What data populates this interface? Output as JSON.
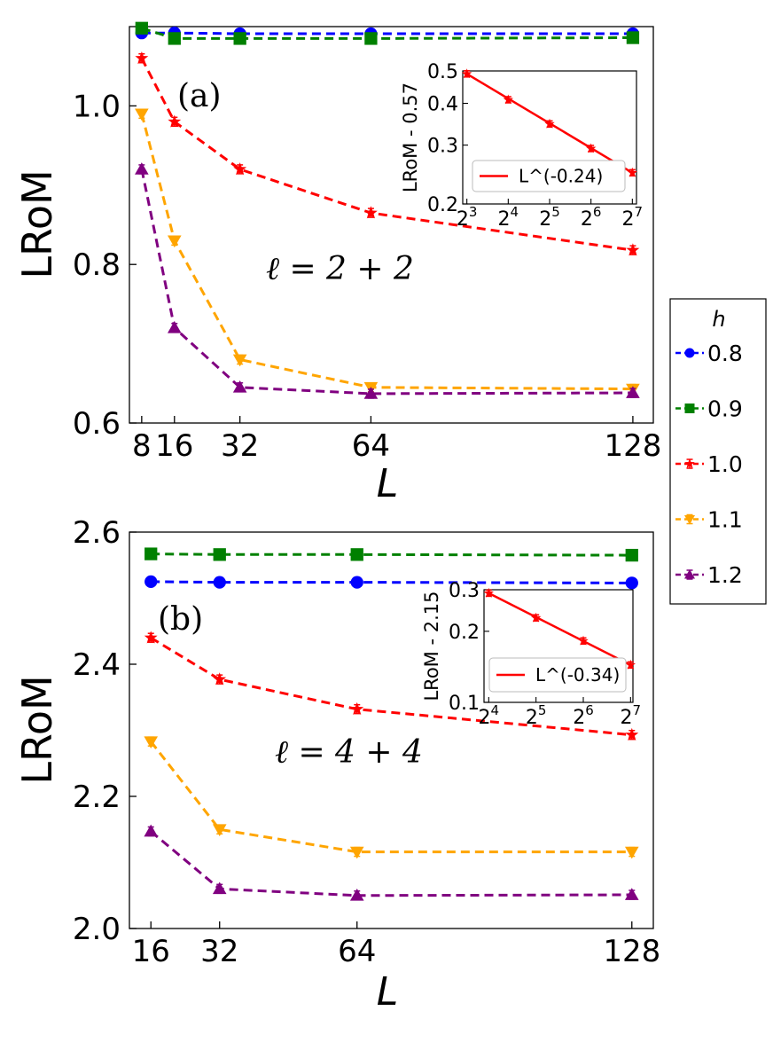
{
  "colors": {
    "h08": "#0000ff",
    "h09": "#008000",
    "h10": "#ff0000",
    "h11": "#ffa500",
    "h12": "#800080"
  },
  "legend": {
    "title": "h",
    "entries": [
      {
        "label": "0.8",
        "color": "#0000ff",
        "marker": "circle"
      },
      {
        "label": "0.9",
        "color": "#008000",
        "marker": "square"
      },
      {
        "label": "1.0",
        "color": "#ff0000",
        "marker": "star"
      },
      {
        "label": "1.1",
        "color": "#ffa500",
        "marker": "triangle-down"
      },
      {
        "label": "1.2",
        "color": "#800080",
        "marker": "triangle-up"
      }
    ]
  },
  "chart_data": [
    {
      "id": "a",
      "type": "line",
      "panel_label": "(a)",
      "annotation": "ℓ = 2 + 2",
      "xlabel": "L",
      "ylabel": "LRoM",
      "xlim": [
        5,
        133
      ],
      "ylim": [
        0.6,
        1.1
      ],
      "xticks": [
        8,
        16,
        32,
        64,
        128
      ],
      "xtick_labels": [
        "8",
        "16",
        "32",
        "64",
        "128"
      ],
      "yticks": [
        0.6,
        0.8,
        1.0
      ],
      "ytick_labels": [
        "0.6",
        "0.8",
        "1.0"
      ],
      "x": [
        8,
        16,
        32,
        64,
        128
      ],
      "series": [
        {
          "name": "0.8",
          "values": [
            1.092,
            1.092,
            1.091,
            1.091,
            1.091
          ]
        },
        {
          "name": "0.9",
          "values": [
            1.098,
            1.085,
            1.085,
            1.085,
            1.086
          ]
        },
        {
          "name": "1.0",
          "values": [
            1.06,
            0.98,
            0.92,
            0.865,
            0.818
          ]
        },
        {
          "name": "1.1",
          "values": [
            0.99,
            0.83,
            0.68,
            0.645,
            0.643
          ]
        },
        {
          "name": "1.2",
          "values": [
            0.92,
            0.72,
            0.645,
            0.637,
            0.638
          ]
        }
      ],
      "inset": {
        "type": "line",
        "ylabel": "LRoM - 0.57",
        "xscale": "log2",
        "yscale": "log",
        "xlim_log2": [
          2.9,
          7.1
        ],
        "ylim": [
          0.2,
          0.5
        ],
        "xtick_labels": [
          {
            "base": "2",
            "exp": "3"
          },
          {
            "base": "2",
            "exp": "4"
          },
          {
            "base": "2",
            "exp": "5"
          },
          {
            "base": "2",
            "exp": "6"
          },
          {
            "base": "2",
            "exp": "7"
          }
        ],
        "ytick_labels": [
          "0.2",
          "0.3",
          "0.4",
          "0.5"
        ],
        "yticks": [
          0.2,
          0.3,
          0.4,
          0.5
        ],
        "x_log2": [
          3,
          4,
          5,
          6,
          7
        ],
        "data_values": [
          0.49,
          0.41,
          0.347,
          0.293,
          0.248
        ],
        "fit_label": "L^(-0.24)"
      }
    },
    {
      "id": "b",
      "type": "line",
      "panel_label": "(b)",
      "annotation": "ℓ = 4 + 4",
      "xlabel": "L",
      "ylabel": "LRoM",
      "xlim": [
        11,
        133
      ],
      "ylim": [
        2.0,
        2.6
      ],
      "xticks": [
        16,
        32,
        64,
        128
      ],
      "xtick_labels": [
        "16",
        "32",
        "64",
        "128"
      ],
      "yticks": [
        2.0,
        2.2,
        2.4,
        2.6
      ],
      "ytick_labels": [
        "2.0",
        "2.2",
        "2.4",
        "2.6"
      ],
      "x": [
        16,
        32,
        64,
        128
      ],
      "series": [
        {
          "name": "0.8",
          "values": [
            2.525,
            2.524,
            2.524,
            2.523
          ]
        },
        {
          "name": "0.9",
          "values": [
            2.567,
            2.566,
            2.566,
            2.565
          ]
        },
        {
          "name": "1.0",
          "values": [
            2.44,
            2.377,
            2.332,
            2.293
          ]
        },
        {
          "name": "1.1",
          "values": [
            2.283,
            2.15,
            2.116,
            2.116
          ]
        },
        {
          "name": "1.2",
          "values": [
            2.147,
            2.06,
            2.05,
            2.051
          ]
        }
      ],
      "inset": {
        "type": "line",
        "ylabel": "LRoM - 2.15",
        "xscale": "log2",
        "yscale": "log",
        "xlim_log2": [
          3.9,
          7.05
        ],
        "ylim": [
          0.1,
          0.3
        ],
        "xtick_labels": [
          {
            "base": "2",
            "exp": "4"
          },
          {
            "base": "2",
            "exp": "5"
          },
          {
            "base": "2",
            "exp": "6"
          },
          {
            "base": "2",
            "exp": "7"
          }
        ],
        "ytick_labels": [
          "0.1",
          "0.2",
          "0.3"
        ],
        "yticks": [
          0.1,
          0.2,
          0.3
        ],
        "x_log2": [
          4,
          5,
          6,
          7
        ],
        "data_values": [
          0.29,
          0.228,
          0.182,
          0.144
        ],
        "fit_label": "L^(-0.34)"
      }
    }
  ]
}
